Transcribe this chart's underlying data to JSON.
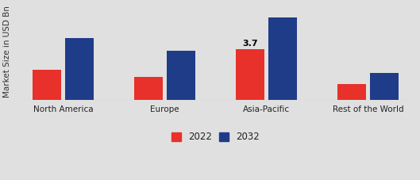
{
  "categories": [
    "North America",
    "Europe",
    "Asia-Pacific",
    "Rest of the World"
  ],
  "values_2022": [
    2.2,
    1.7,
    3.7,
    1.2
  ],
  "values_2032": [
    4.5,
    3.6,
    6.0,
    2.0
  ],
  "color_2022": "#e8312a",
  "color_2032": "#1f3c88",
  "ylabel": "Market Size in USD Bn",
  "legend_labels": [
    "2022",
    "2032"
  ],
  "annotation_text": "3.7",
  "annotation_category_index": 2,
  "bar_width": 0.28,
  "background_color_top": "#e8e8e8",
  "background_color_bottom": "#d0d0d0",
  "ylim": [
    0,
    7.0
  ],
  "ylabel_fontsize": 7.5,
  "tick_fontsize": 7.5,
  "legend_fontsize": 8.5,
  "annotation_fontsize": 8
}
